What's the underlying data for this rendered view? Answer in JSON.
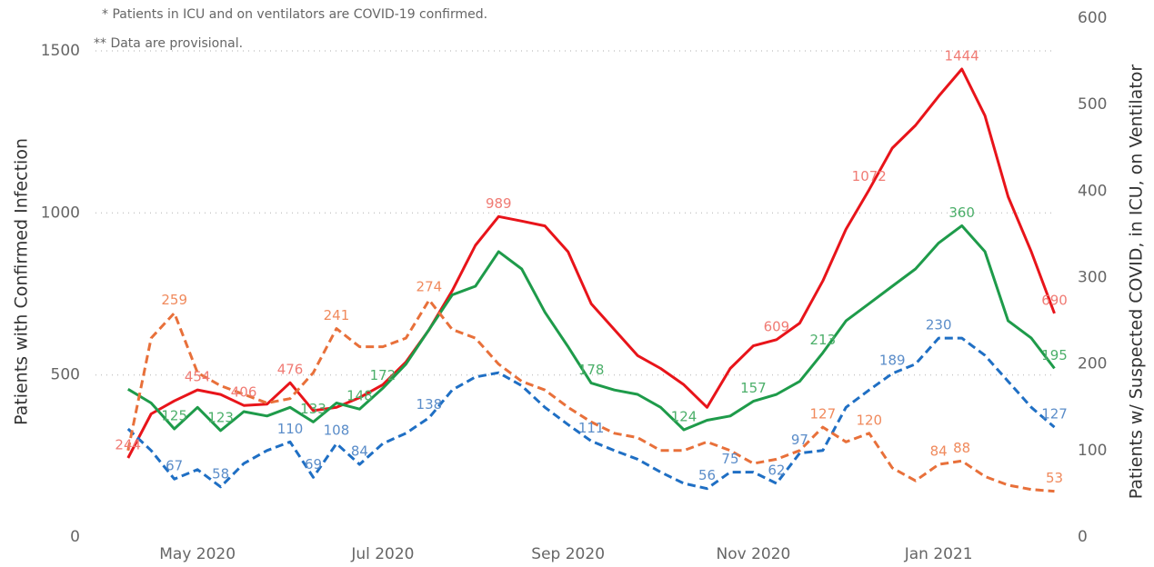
{
  "chart_data": {
    "type": "line",
    "notes": [
      "* Patients in ICU and on ventilators are COVID-19 confirmed.",
      "** Data are provisional."
    ],
    "y_label": "Patients with Confirmed Infection",
    "y2_label": "Patients w/ Suspected COVID, in ICU, on Ventilator",
    "x": [
      4.25,
      4.5,
      4.75,
      5.0,
      5.25,
      5.5,
      5.75,
      6.0,
      6.25,
      6.5,
      6.75,
      7.0,
      7.25,
      7.5,
      7.75,
      8.0,
      8.25,
      8.5,
      8.75,
      9.0,
      9.25,
      9.5,
      9.75,
      10.0,
      10.25,
      10.5,
      10.75,
      11.0,
      11.25,
      11.5,
      11.75,
      12.0,
      12.25,
      12.5,
      12.75,
      13.0,
      13.25,
      13.5,
      13.75,
      14.0,
      14.25
    ],
    "xlim": [
      3.85,
      14.5
    ],
    "xticks": [
      {
        "value": 5,
        "label": "May 2020"
      },
      {
        "value": 7,
        "label": "Jul 2020"
      },
      {
        "value": 9,
        "label": "Sep 2020"
      },
      {
        "value": 11,
        "label": "Nov 2020"
      },
      {
        "value": 13,
        "label": "Jan 2021"
      }
    ],
    "ylim": [
      0,
      1500
    ],
    "yticks": [
      0,
      500,
      1000,
      1500
    ],
    "y2lim": [
      0,
      600
    ],
    "y2ticks": [
      0,
      100,
      200,
      300,
      400,
      500,
      600
    ],
    "grid": true,
    "series": [
      {
        "color": "#e8141a",
        "label_color": "#f07b74",
        "dash": false,
        "values": [
          244,
          380,
          420,
          454,
          440,
          406,
          410,
          476,
          390,
          400,
          430,
          470,
          540,
          640,
          760,
          900,
          989,
          975,
          960,
          880,
          720,
          640,
          560,
          520,
          470,
          400,
          520,
          590,
          609,
          660,
          790,
          950,
          1072,
          1200,
          1270,
          1360,
          1444,
          1300,
          1050,
          880,
          690
        ],
        "value_labels": [
          "244",
          null,
          null,
          "454",
          null,
          "406",
          null,
          "476",
          null,
          null,
          null,
          null,
          null,
          null,
          null,
          null,
          "989",
          null,
          null,
          null,
          null,
          null,
          null,
          null,
          null,
          null,
          null,
          null,
          "609",
          null,
          null,
          null,
          "1072",
          null,
          null,
          null,
          "1444",
          null,
          null,
          null,
          "690"
        ]
      },
      {
        "color": "#1e9b4a",
        "label_color": "#4caf6a",
        "axis": "y2",
        "dash": false,
        "values": [
          171,
          155,
          125,
          150,
          123,
          145,
          140,
          150,
          133,
          155,
          148,
          172,
          200,
          240,
          280,
          290,
          330,
          310,
          260,
          220,
          178,
          170,
          165,
          150,
          124,
          135,
          140,
          157,
          165,
          180,
          213,
          250,
          270,
          290,
          310,
          340,
          360,
          330,
          250,
          230,
          195
        ],
        "value_labels": [
          null,
          null,
          "125",
          null,
          "123",
          null,
          null,
          null,
          "133",
          null,
          "148",
          "172",
          null,
          null,
          null,
          null,
          null,
          null,
          null,
          null,
          "178",
          null,
          null,
          null,
          "124",
          null,
          null,
          "157",
          null,
          null,
          "213",
          null,
          null,
          null,
          null,
          null,
          "360",
          null,
          null,
          null,
          "195"
        ]
      },
      {
        "color": "#1f6fc4",
        "label_color": "#5b8dc9",
        "axis": "y2",
        "dash": true,
        "values": [
          125,
          100,
          67,
          78,
          58,
          85,
          100,
          110,
          69,
          108,
          84,
          108,
          120,
          138,
          170,
          185,
          190,
          175,
          150,
          130,
          111,
          100,
          90,
          75,
          62,
          56,
          75,
          75,
          62,
          97,
          100,
          150,
          170,
          189,
          200,
          230,
          230,
          210,
          180,
          150,
          127
        ],
        "value_labels": [
          null,
          null,
          "67",
          null,
          "58",
          null,
          null,
          "110",
          "69",
          "108",
          "84",
          null,
          null,
          "138",
          null,
          null,
          null,
          null,
          null,
          null,
          "111",
          null,
          null,
          null,
          null,
          "56",
          "75",
          null,
          "62",
          "97",
          null,
          null,
          null,
          "189",
          null,
          "230",
          null,
          null,
          null,
          null,
          "127"
        ]
      },
      {
        "color": "#e8703a",
        "label_color": "#f08a5d",
        "axis": "y2",
        "dash": true,
        "values": [
          100,
          230,
          259,
          190,
          175,
          165,
          155,
          160,
          190,
          241,
          220,
          220,
          230,
          274,
          240,
          230,
          200,
          180,
          170,
          150,
          133,
          120,
          115,
          100,
          100,
          110,
          100,
          85,
          90,
          100,
          127,
          110,
          120,
          80,
          65,
          84,
          88,
          70,
          60,
          55,
          53
        ],
        "value_labels": [
          null,
          null,
          "259",
          null,
          null,
          null,
          null,
          null,
          null,
          "241",
          null,
          null,
          null,
          "274",
          null,
          null,
          null,
          null,
          null,
          null,
          null,
          null,
          null,
          null,
          null,
          null,
          null,
          null,
          null,
          null,
          "127",
          null,
          "120",
          null,
          null,
          "84",
          "88",
          null,
          null,
          null,
          "53"
        ]
      }
    ]
  }
}
